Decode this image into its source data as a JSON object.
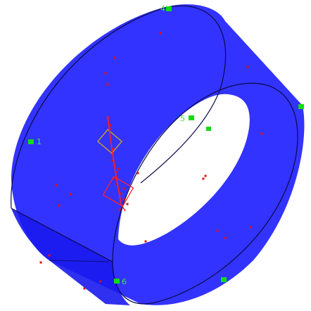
{
  "colors": {
    "background": "#ffffff",
    "ring_fill": "#3333ff",
    "ring_fill_dark": "#1a1aee",
    "edge": "#0a0a4a",
    "marker": "#11dd11",
    "marker_text": "#33ee33",
    "point": "#e01010",
    "overlay_yellow": "#c8a820",
    "overlay_red": "#ff2020"
  },
  "markers": [
    {
      "id": "4",
      "label": "4"
    },
    {
      "id": "1",
      "label": "1"
    },
    {
      "id": "5",
      "label": "5"
    },
    {
      "id": "6",
      "label": "6"
    },
    {
      "id": "m-right-upper",
      "label": ""
    },
    {
      "id": "m-inner",
      "label": ""
    },
    {
      "id": "m-bottom-right",
      "label": ""
    }
  ]
}
